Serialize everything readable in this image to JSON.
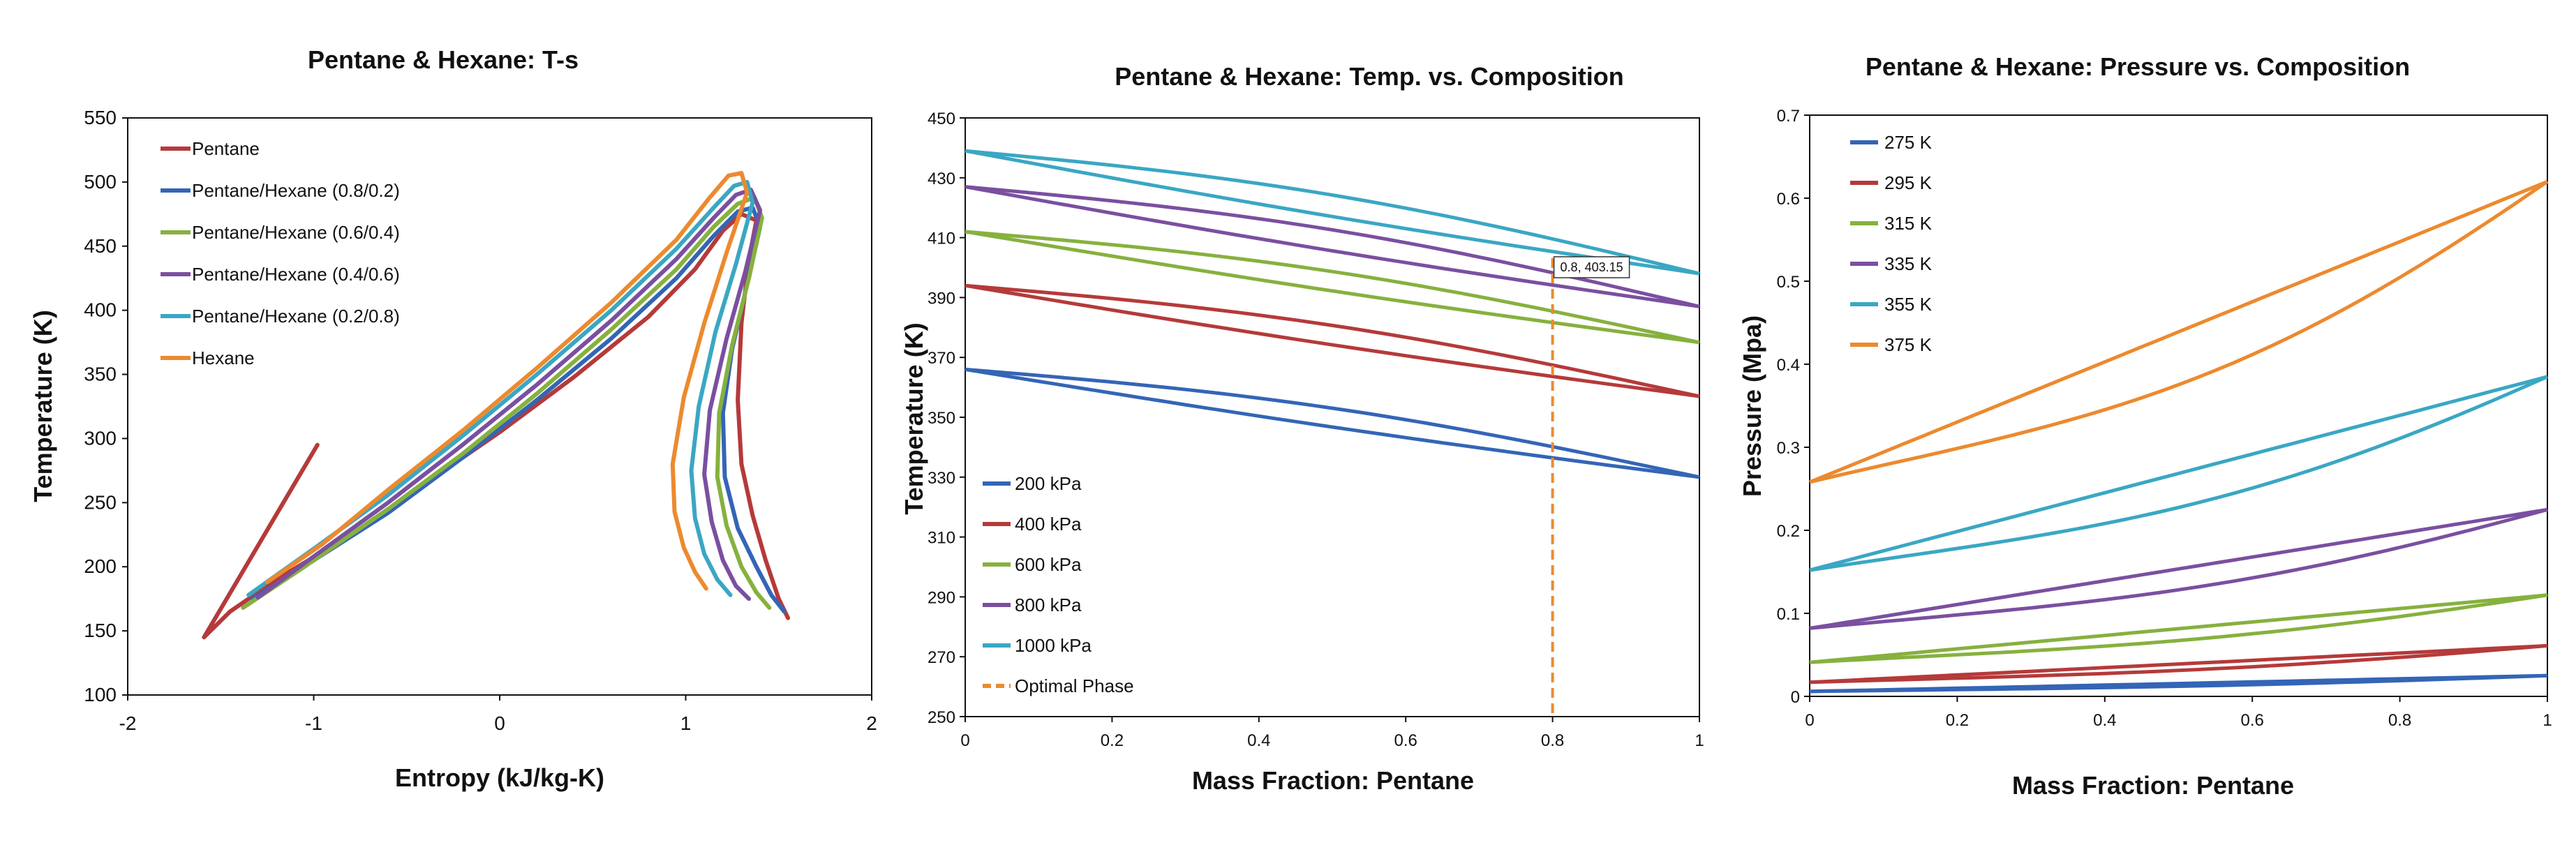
{
  "chart_data": [
    {
      "id": "ts",
      "type": "line",
      "title": "Pentane & Hexane: T-s",
      "xlabel": "Entropy (kJ/kg-K)",
      "ylabel": "Temperature (K)",
      "xlim": [
        -2,
        2
      ],
      "ylim": [
        100,
        550
      ],
      "xticks": [
        -2,
        -1,
        0,
        1,
        2
      ],
      "yticks": [
        100,
        150,
        200,
        250,
        300,
        350,
        400,
        450,
        500,
        550
      ],
      "legend_position": "top-left",
      "series": [
        {
          "name": "Pentane",
          "color": "#b53a3a",
          "points": [
            [
              -0.98,
              295
            ],
            [
              -1.59,
              145
            ],
            [
              -1.45,
              165
            ],
            [
              -1.2,
              190
            ],
            [
              -0.8,
              225
            ],
            [
              -0.4,
              265
            ],
            [
              0,
              305
            ],
            [
              0.4,
              348
            ],
            [
              0.8,
              395
            ],
            [
              1.05,
              432
            ],
            [
              1.2,
              462
            ],
            [
              1.3,
              475
            ],
            [
              1.38,
              470
            ],
            [
              1.34,
              440
            ],
            [
              1.3,
              390
            ],
            [
              1.28,
              330
            ],
            [
              1.3,
              280
            ],
            [
              1.36,
              240
            ],
            [
              1.43,
              205
            ],
            [
              1.5,
              175
            ],
            [
              1.55,
              160
            ]
          ]
        },
        {
          "name": "Pentane/Hexane (0.8/0.2)",
          "color": "#3465b6",
          "points": [
            [
              -1.33,
              175
            ],
            [
              -1.0,
              205
            ],
            [
              -0.6,
              242
            ],
            [
              -0.2,
              285
            ],
            [
              0.2,
              330
            ],
            [
              0.6,
              378
            ],
            [
              0.95,
              425
            ],
            [
              1.15,
              458
            ],
            [
              1.28,
              477
            ],
            [
              1.36,
              480
            ],
            [
              1.4,
              465
            ],
            [
              1.33,
              420
            ],
            [
              1.25,
              370
            ],
            [
              1.2,
              320
            ],
            [
              1.21,
              270
            ],
            [
              1.28,
              230
            ],
            [
              1.38,
              200
            ],
            [
              1.46,
              178
            ],
            [
              1.53,
              165
            ]
          ]
        },
        {
          "name": "Pentane/Hexane (0.6/0.4)",
          "color": "#86b13e",
          "points": [
            [
              -1.38,
              168
            ],
            [
              -1.05,
              200
            ],
            [
              -0.6,
              245
            ],
            [
              -0.2,
              288
            ],
            [
              0.2,
              335
            ],
            [
              0.6,
              385
            ],
            [
              0.95,
              432
            ],
            [
              1.15,
              465
            ],
            [
              1.28,
              483
            ],
            [
              1.37,
              488
            ],
            [
              1.41,
              472
            ],
            [
              1.34,
              425
            ],
            [
              1.25,
              373
            ],
            [
              1.18,
              320
            ],
            [
              1.17,
              270
            ],
            [
              1.22,
              232
            ],
            [
              1.3,
              200
            ],
            [
              1.38,
              180
            ],
            [
              1.45,
              168
            ]
          ]
        },
        {
          "name": "Pentane/Hexane (0.4/0.6)",
          "color": "#7a4fa0",
          "points": [
            [
              -1.3,
              176
            ],
            [
              -1.0,
              208
            ],
            [
              -0.6,
              250
            ],
            [
              -0.2,
              295
            ],
            [
              0.2,
              342
            ],
            [
              0.6,
              392
            ],
            [
              0.95,
              440
            ],
            [
              1.15,
              472
            ],
            [
              1.27,
              490
            ],
            [
              1.35,
              494
            ],
            [
              1.4,
              478
            ],
            [
              1.32,
              430
            ],
            [
              1.22,
              378
            ],
            [
              1.13,
              322
            ],
            [
              1.1,
              272
            ],
            [
              1.14,
              235
            ],
            [
              1.2,
              205
            ],
            [
              1.27,
              185
            ],
            [
              1.34,
              175
            ]
          ]
        },
        {
          "name": "Pentane/Hexane (0.2/0.8)",
          "color": "#3aa7c3",
          "points": [
            [
              -1.35,
              178
            ],
            [
              -1.0,
              214
            ],
            [
              -0.6,
              256
            ],
            [
              -0.2,
              302
            ],
            [
              0.2,
              350
            ],
            [
              0.6,
              400
            ],
            [
              0.95,
              448
            ],
            [
              1.15,
              480
            ],
            [
              1.26,
              497
            ],
            [
              1.33,
              500
            ],
            [
              1.36,
              484
            ],
            [
              1.27,
              436
            ],
            [
              1.16,
              383
            ],
            [
              1.07,
              325
            ],
            [
              1.03,
              275
            ],
            [
              1.05,
              238
            ],
            [
              1.1,
              210
            ],
            [
              1.17,
              190
            ],
            [
              1.24,
              178
            ]
          ]
        },
        {
          "name": "Hexane",
          "color": "#ec8a2f",
          "points": [
            [
              -1.25,
              188
            ],
            [
              -0.95,
              218
            ],
            [
              -0.6,
              260
            ],
            [
              -0.2,
              306
            ],
            [
              0.2,
              355
            ],
            [
              0.6,
              406
            ],
            [
              0.95,
              455
            ],
            [
              1.13,
              488
            ],
            [
              1.23,
              505
            ],
            [
              1.3,
              507
            ],
            [
              1.33,
              492
            ],
            [
              1.22,
              445
            ],
            [
              1.1,
              390
            ],
            [
              0.99,
              332
            ],
            [
              0.93,
              280
            ],
            [
              0.94,
              243
            ],
            [
              0.99,
              215
            ],
            [
              1.05,
              196
            ],
            [
              1.11,
              183
            ]
          ]
        }
      ]
    },
    {
      "id": "tc",
      "type": "line",
      "title": "Pentane & Hexane: Temp. vs. Composition",
      "xlabel": "Mass Fraction: Pentane",
      "ylabel": "Temperature (K)",
      "xlim": [
        0,
        1
      ],
      "ylim": [
        250,
        450
      ],
      "xticks": [
        0,
        0.2,
        0.4,
        0.6,
        0.8,
        1
      ],
      "yticks": [
        250,
        270,
        290,
        310,
        330,
        350,
        370,
        390,
        410,
        430,
        450
      ],
      "legend_position": "bottom-left",
      "annotation": {
        "x": 0.8,
        "y": 403.15,
        "text": "0.8, 403.15"
      },
      "optimal_phase_x": 0.8,
      "series": [
        {
          "name": "200 kPa",
          "color": "#3465b6",
          "T0": 366,
          "T1": 330
        },
        {
          "name": "400 kPa",
          "color": "#b53a3a",
          "T0": 394,
          "T1": 357
        },
        {
          "name": "600 kPa",
          "color": "#86b13e",
          "T0": 412,
          "T1": 375
        },
        {
          "name": "800 kPa",
          "color": "#7a4fa0",
          "T0": 427,
          "T1": 387
        },
        {
          "name": "1000 kPa",
          "color": "#3aa7c3",
          "T0": 439,
          "T1": 398
        },
        {
          "name": "Optimal Phase",
          "color": "#ec8a2f",
          "dashed": true
        }
      ]
    },
    {
      "id": "pc",
      "type": "line",
      "title": "Pentane & Hexane: Pressure vs. Composition",
      "xlabel": "Mass Fraction: Pentane",
      "ylabel": "Pressure (Mpa)",
      "xlim": [
        0,
        1
      ],
      "ylim": [
        0,
        0.7
      ],
      "xticks": [
        0,
        0.2,
        0.4,
        0.6,
        0.8,
        1
      ],
      "yticks": [
        0,
        0.1,
        0.2,
        0.3,
        0.4,
        0.5,
        0.6,
        0.7
      ],
      "legend_position": "top-left",
      "series": [
        {
          "name": "275 K",
          "color": "#3465b6",
          "P0": 0.006,
          "P1": 0.025
        },
        {
          "name": "295 K",
          "color": "#b53a3a",
          "P0": 0.017,
          "P1": 0.061
        },
        {
          "name": "315 K",
          "color": "#86b13e",
          "P0": 0.041,
          "P1": 0.122
        },
        {
          "name": "335 K",
          "color": "#7a4fa0",
          "P0": 0.082,
          "P1": 0.225
        },
        {
          "name": "355 K",
          "color": "#3aa7c3",
          "P0": 0.152,
          "P1": 0.385
        },
        {
          "name": "375 K",
          "color": "#ec8a2f",
          "P0": 0.258,
          "P1": 0.62
        }
      ]
    }
  ]
}
